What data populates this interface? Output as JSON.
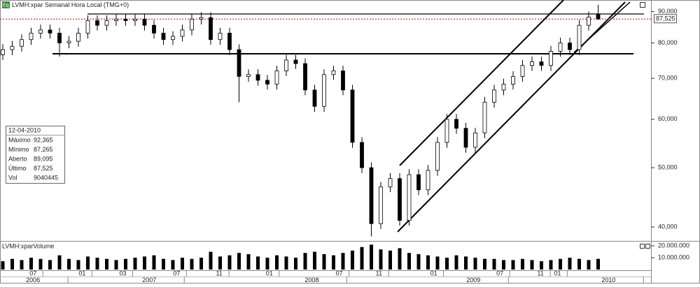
{
  "chart_data": {
    "type": "candlestick",
    "title": "LVMH:xpar Semanal Hora Local (TMG+0)",
    "icon": "Eq",
    "open": [
      76.5,
      78,
      79,
      81,
      83,
      84,
      83,
      80,
      80.5,
      83,
      87,
      85.5,
      87,
      87.5,
      87,
      87.5,
      85.5,
      83,
      81,
      82,
      84,
      87.5,
      88,
      81,
      83,
      78,
      70.5,
      71,
      69.5,
      68.5,
      72,
      75,
      74,
      67,
      63,
      71,
      72,
      67,
      55,
      50,
      40.5,
      46.5,
      48,
      41,
      48.7,
      46,
      49.5,
      55,
      60,
      58,
      54,
      57,
      64,
      67,
      68.5,
      70.5,
      73.5,
      74.5,
      73.5,
      77.5,
      80,
      78,
      85.5,
      89.095
    ],
    "high": [
      79.6,
      80.6,
      82.6,
      84.7,
      85.7,
      85.7,
      84.7,
      82.1,
      84.7,
      88.7,
      88.7,
      88.7,
      89.3,
      89.3,
      89.3,
      89.3,
      87.2,
      84.7,
      83.6,
      85.7,
      89.3,
      89.8,
      89.8,
      84.7,
      84.7,
      79.6,
      72.4,
      72.4,
      70.9,
      73.4,
      76.5,
      76.5,
      75.5,
      68.3,
      72.4,
      73.4,
      73.4,
      68.3,
      56.1,
      51.0,
      47.4,
      49.0,
      49.0,
      49.7,
      49.7,
      50.5,
      56.1,
      61.2,
      61.2,
      59.2,
      58.1,
      65.3,
      68.3,
      69.9,
      71.9,
      75.0,
      76.0,
      76.0,
      79.1,
      81.6,
      81.6,
      87.2,
      90.0,
      92.365
    ],
    "low": [
      75.0,
      76.4,
      77.4,
      79.4,
      81.3,
      81.3,
      76.0,
      78.4,
      78.9,
      81.3,
      83.8,
      83.8,
      85.3,
      85.3,
      85.3,
      83.8,
      81.3,
      79.4,
      79.4,
      80.4,
      82.3,
      85.8,
      79.4,
      79.4,
      76.4,
      64.0,
      69.1,
      68.1,
      67.1,
      67.1,
      70.6,
      72.5,
      65.7,
      61.7,
      61.7,
      69.6,
      65.7,
      53.9,
      49.0,
      38.6,
      39.7,
      45.6,
      40.2,
      40.2,
      45.1,
      45.1,
      48.5,
      53.9,
      56.8,
      52.9,
      52.9,
      55.9,
      62.7,
      65.7,
      67.1,
      69.1,
      72.0,
      72.0,
      72.0,
      76.0,
      76.4,
      76.4,
      83.8,
      87.265
    ],
    "close": [
      78,
      79,
      81,
      83,
      84,
      83,
      80,
      80.5,
      83,
      87,
      85.5,
      87,
      87.5,
      87,
      87.5,
      85.5,
      83,
      81,
      82,
      84,
      87.5,
      88,
      81,
      83,
      78,
      70.5,
      71,
      69.5,
      68.5,
      72,
      75,
      74,
      67,
      63,
      71,
      72,
      67,
      55,
      50,
      40.5,
      46.5,
      48,
      41,
      48.7,
      46,
      49.5,
      55,
      60,
      58,
      54,
      57,
      64,
      67,
      68.5,
      70.5,
      73.5,
      74.5,
      73.5,
      77.5,
      80,
      78,
      85.5,
      88.2,
      87.525
    ],
    "ylim": [
      38.15,
      92.8
    ],
    "log_scale": true,
    "yticks": [
      {
        "value": 40,
        "label": "40,000"
      },
      {
        "value": 50,
        "label": "50,000"
      },
      {
        "value": 60,
        "label": "60,000"
      },
      {
        "value": 70,
        "label": "70,000"
      },
      {
        "value": 80,
        "label": "80,000"
      },
      {
        "value": 90,
        "label": "90,000"
      }
    ],
    "last_price": {
      "value": 87.525,
      "label": "87,525"
    },
    "volume": {
      "title": "LVMH:xparVolume",
      "values": [
        7000000,
        9000000,
        8000000,
        10000000,
        9000000,
        8000000,
        12000000,
        9000000,
        8000000,
        11000000,
        10000000,
        9000000,
        8000000,
        9000000,
        10000000,
        11000000,
        12000000,
        9000000,
        8000000,
        10000000,
        9000000,
        10000000,
        15000000,
        11000000,
        12000000,
        14000000,
        13000000,
        11000000,
        10000000,
        12000000,
        11000000,
        10000000,
        14000000,
        15000000,
        13000000,
        12000000,
        14000000,
        16000000,
        19000000,
        21000000,
        17000000,
        16000000,
        18000000,
        14000000,
        13000000,
        12000000,
        11000000,
        10000000,
        12000000,
        11000000,
        10000000,
        9000000,
        9000000,
        8000000,
        8000000,
        9000000,
        8000000,
        7000000,
        8000000,
        9000000,
        10000000,
        9000000,
        8000000,
        9040445
      ],
      "ylim": [
        0,
        21800000
      ],
      "yticks": [
        {
          "value": 10000000,
          "label": "10.000.000"
        },
        {
          "value": 20000000,
          "label": "20.000.000"
        }
      ]
    },
    "xticks": [
      {
        "value": 3.2,
        "label": "07"
      },
      {
        "value": 8.4,
        "label": "01"
      },
      {
        "value": 12.7,
        "label": "03"
      },
      {
        "value": 18.4,
        "label": "07"
      },
      {
        "value": 22.9,
        "label": "11"
      },
      {
        "value": 28.2,
        "label": "01"
      },
      {
        "value": 35.6,
        "label": "07"
      },
      {
        "value": 39.8,
        "label": "11"
      },
      {
        "value": 45.6,
        "label": "01"
      },
      {
        "value": 52.6,
        "label": "07"
      },
      {
        "value": 56.9,
        "label": "11"
      },
      {
        "value": 58.7,
        "label": "01"
      }
    ],
    "year_ticks": [
      {
        "value": 3.2,
        "label": "2006"
      },
      {
        "value": 15.5,
        "label": "2007"
      },
      {
        "value": 32.7,
        "label": "2008"
      },
      {
        "value": 49.8,
        "label": "2009"
      },
      {
        "value": 64.1,
        "label": "2010"
      }
    ],
    "info_box": {
      "date": "12-04-2010",
      "rows": [
        {
          "label": "Máximo",
          "value": "92,365"
        },
        {
          "label": "Mínimo",
          "value": "87,265"
        },
        {
          "label": "Aberto",
          "value": "89,095"
        },
        {
          "label": "Último",
          "value": "87,525"
        },
        {
          "label": "Vol",
          "value": "9040445"
        }
      ]
    }
  }
}
